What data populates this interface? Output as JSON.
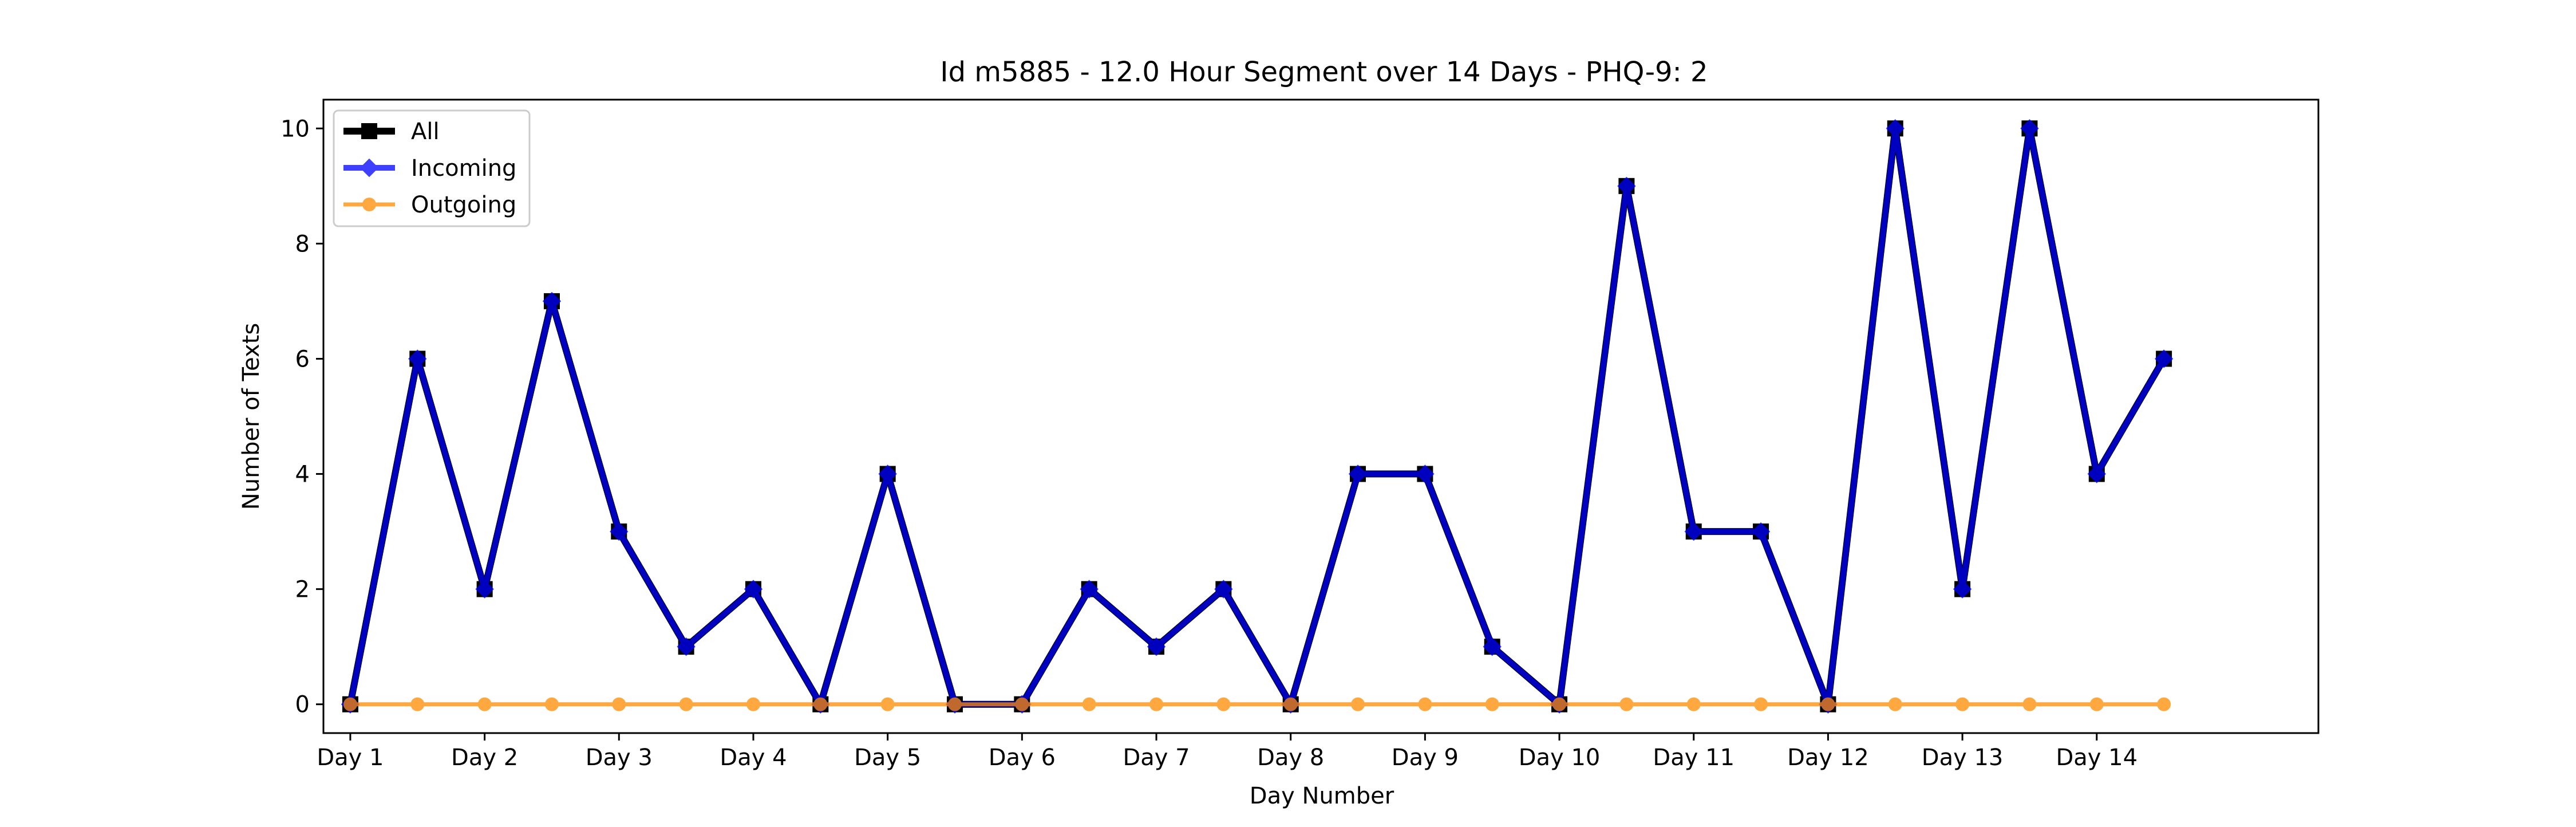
{
  "chart_data": {
    "type": "line",
    "title": "Id m5885 - 12.0 Hour Segment over 14 Days - PHQ-9: 2",
    "xlabel": "Day Number",
    "ylabel": "Number of Texts",
    "ylim": [
      -0.5,
      10.5
    ],
    "yticks": [
      0,
      2,
      4,
      6,
      8,
      10
    ],
    "categories": [
      "Day 1",
      "Day 2",
      "Day 3",
      "Day 4",
      "Day 5",
      "Day 6",
      "Day 7",
      "Day 8",
      "Day 9",
      "Day 10",
      "Day 11",
      "Day 12",
      "Day 13",
      "Day 14"
    ],
    "x": [
      1,
      1.5,
      2,
      2.5,
      3,
      3.5,
      4,
      4.5,
      5,
      5.5,
      6,
      6.5,
      7,
      7.5,
      8,
      8.5,
      9,
      9.5,
      10,
      10.5,
      11,
      11.5,
      12,
      12.5,
      13,
      13.5,
      14,
      14.5
    ],
    "series": [
      {
        "name": "All",
        "color": "#000000",
        "marker": "square",
        "values": [
          0,
          6,
          2,
          7,
          3,
          1,
          2,
          0,
          4,
          0,
          0,
          2,
          1,
          2,
          0,
          4,
          4,
          1,
          0,
          9,
          3,
          3,
          0,
          10,
          2,
          10,
          4,
          6
        ]
      },
      {
        "name": "Incoming",
        "color": "#0000ff",
        "marker": "diamond",
        "values": [
          0,
          6,
          2,
          7,
          3,
          1,
          2,
          0,
          4,
          0,
          0,
          2,
          1,
          2,
          0,
          4,
          4,
          1,
          0,
          9,
          3,
          3,
          0,
          10,
          2,
          10,
          4,
          6
        ]
      },
      {
        "name": "Outgoing",
        "color": "#ff8c00",
        "marker": "circle",
        "values": [
          0,
          0,
          0,
          0,
          0,
          0,
          0,
          0,
          0,
          0,
          0,
          0,
          0,
          0,
          0,
          0,
          0,
          0,
          0,
          0,
          0,
          0,
          0,
          0,
          0,
          0,
          0,
          0
        ]
      }
    ],
    "grid": false,
    "legend": "top-left"
  }
}
